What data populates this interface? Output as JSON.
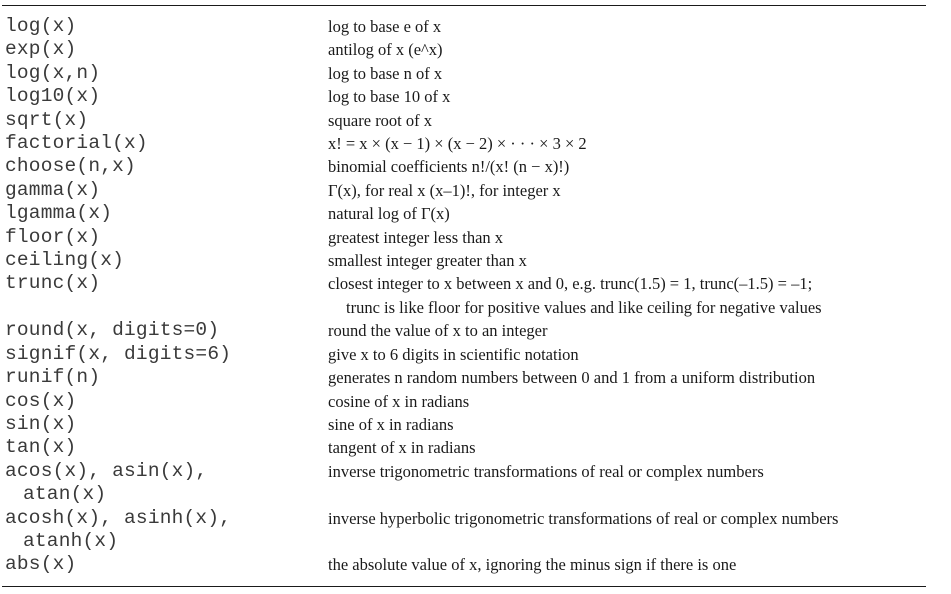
{
  "rows": [
    {
      "fn": [
        "log(x)"
      ],
      "desc": [
        "log to base e of x"
      ]
    },
    {
      "fn": [
        "exp(x)"
      ],
      "desc": [
        "antilog of x (e^x)"
      ]
    },
    {
      "fn": [
        "log(x,n)"
      ],
      "desc": [
        "log to base n of x"
      ]
    },
    {
      "fn": [
        "log10(x)"
      ],
      "desc": [
        "log to base 10 of x"
      ]
    },
    {
      "fn": [
        "sqrt(x)"
      ],
      "desc": [
        "square root of x"
      ]
    },
    {
      "fn": [
        "factorial(x)"
      ],
      "desc": [
        "x! = x × (x − 1) × (x − 2) × · · · × 3 × 2"
      ]
    },
    {
      "fn": [
        "choose(n,x)"
      ],
      "desc": [
        "binomial coefficients n!/(x! (n − x)!)"
      ]
    },
    {
      "fn": [
        "gamma(x)"
      ],
      "desc": [
        "Γ(x), for real x (x–1)!, for integer x"
      ]
    },
    {
      "fn": [
        "lgamma(x)"
      ],
      "desc": [
        "natural log of Γ(x)"
      ]
    },
    {
      "fn": [
        "floor(x)"
      ],
      "desc": [
        "greatest integer less than x"
      ]
    },
    {
      "fn": [
        "ceiling(x)"
      ],
      "desc": [
        "smallest integer greater than x"
      ]
    },
    {
      "fn": [
        "trunc(x)"
      ],
      "desc": [
        "closest integer to x between x and 0, e.g. trunc(1.5) = 1, trunc(–1.5) = –1;",
        "trunc is like floor for positive values and like ceiling for negative values"
      ]
    },
    {
      "fn": [
        "round(x, digits=0)"
      ],
      "desc": [
        "round the value of x to an integer"
      ]
    },
    {
      "fn": [
        "signif(x, digits=6)"
      ],
      "desc": [
        "give x to 6 digits in scientific notation"
      ]
    },
    {
      "fn": [
        "runif(n)"
      ],
      "desc": [
        "generates n random numbers between 0 and 1 from a uniform distribution"
      ]
    },
    {
      "fn": [
        "cos(x)"
      ],
      "desc": [
        "cosine of x in radians"
      ]
    },
    {
      "fn": [
        "sin(x)"
      ],
      "desc": [
        "sine of x in radians"
      ]
    },
    {
      "fn": [
        "tan(x)"
      ],
      "desc": [
        "tangent of x in radians"
      ]
    },
    {
      "fn": [
        "acos(x), asin(x),",
        "atan(x)"
      ],
      "desc": [
        "inverse trigonometric transformations of real or complex numbers"
      ]
    },
    {
      "fn": [
        "acosh(x), asinh(x),",
        "atanh(x)"
      ],
      "desc": [
        "inverse hyperbolic trigonometric transformations of real or complex numbers"
      ]
    },
    {
      "fn": [
        "abs(x)"
      ],
      "desc": [
        "the absolute value of x, ignoring the minus sign if there is one"
      ]
    }
  ]
}
